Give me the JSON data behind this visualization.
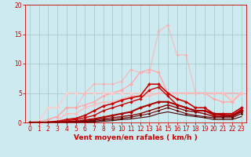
{
  "title": "",
  "xlabel": "Vent moyen/en rafales ( km/h )",
  "background_color": "#cdeaf0",
  "grid_color": "#aacccc",
  "xlim": [
    -0.5,
    23.5
  ],
  "ylim": [
    0,
    20
  ],
  "xticks": [
    0,
    1,
    2,
    3,
    4,
    5,
    6,
    7,
    8,
    9,
    10,
    11,
    12,
    13,
    14,
    15,
    16,
    17,
    18,
    19,
    20,
    21,
    22,
    23
  ],
  "yticks": [
    0,
    5,
    10,
    15,
    20
  ],
  "tick_color": "#cc0000",
  "label_color": "#cc0000",
  "lines": [
    {
      "x": [
        0,
        1,
        2,
        3,
        4,
        5,
        6,
        7,
        8,
        9,
        10,
        11,
        12,
        13,
        14,
        15,
        16,
        17,
        18,
        19,
        20,
        21,
        22,
        23
      ],
      "y": [
        0.0,
        0.1,
        0.5,
        1.0,
        2.5,
        2.5,
        3.0,
        3.5,
        4.5,
        5.0,
        5.5,
        6.5,
        8.5,
        9.0,
        8.5,
        5.0,
        5.0,
        5.0,
        5.0,
        5.0,
        4.0,
        3.5,
        3.5,
        5.0
      ],
      "color": "#ffaaaa",
      "lw": 1.0,
      "marker": "D",
      "ms": 2.0,
      "alpha": 1.0
    },
    {
      "x": [
        0,
        1,
        2,
        3,
        4,
        5,
        6,
        7,
        8,
        9,
        10,
        11,
        12,
        13,
        14,
        15,
        16,
        17,
        18,
        19,
        20,
        21,
        22,
        23
      ],
      "y": [
        0.0,
        0.3,
        2.5,
        2.5,
        5.0,
        5.0,
        5.0,
        5.0,
        5.0,
        5.0,
        5.0,
        5.0,
        5.0,
        5.0,
        5.0,
        5.0,
        5.0,
        5.0,
        5.0,
        5.0,
        5.0,
        5.0,
        4.0,
        5.0
      ],
      "color": "#ffcccc",
      "lw": 1.0,
      "marker": "D",
      "ms": 2.0,
      "alpha": 1.0
    },
    {
      "x": [
        0,
        1,
        2,
        3,
        4,
        5,
        6,
        7,
        8,
        9,
        10,
        11,
        12,
        13,
        14,
        15,
        16,
        17,
        18,
        19,
        20,
        21,
        22,
        23
      ],
      "y": [
        0.0,
        0.1,
        0.5,
        1.0,
        2.5,
        2.5,
        5.0,
        6.5,
        6.5,
        6.5,
        7.0,
        9.0,
        8.5,
        8.5,
        15.5,
        16.5,
        11.5,
        11.5,
        5.0,
        5.0,
        5.0,
        5.0,
        3.5,
        5.0
      ],
      "color": "#ffaaaa",
      "lw": 1.0,
      "marker": "D",
      "ms": 2.0,
      "alpha": 0.6
    },
    {
      "x": [
        0,
        1,
        2,
        3,
        4,
        5,
        6,
        7,
        8,
        9,
        10,
        11,
        12,
        13,
        14,
        15,
        16,
        17,
        18,
        19,
        20,
        21,
        22,
        23
      ],
      "y": [
        0.0,
        0.0,
        0.1,
        0.3,
        1.5,
        1.5,
        2.5,
        3.0,
        3.5,
        3.5,
        4.0,
        4.5,
        4.5,
        4.5,
        5.0,
        5.0,
        5.0,
        5.0,
        5.0,
        5.0,
        5.0,
        5.0,
        5.0,
        5.0
      ],
      "color": "#ffbbbb",
      "lw": 1.0,
      "marker": "D",
      "ms": 2.0,
      "alpha": 1.0
    },
    {
      "x": [
        0,
        1,
        2,
        3,
        4,
        5,
        6,
        7,
        8,
        9,
        10,
        11,
        12,
        13,
        14,
        15,
        16,
        17,
        18,
        19,
        20,
        21,
        22,
        23
      ],
      "y": [
        0.0,
        0.0,
        0.05,
        0.2,
        0.5,
        0.7,
        1.2,
        2.0,
        2.8,
        3.2,
        3.8,
        4.2,
        4.5,
        6.5,
        6.5,
        5.0,
        4.0,
        3.5,
        2.5,
        2.5,
        1.5,
        1.5,
        1.5,
        2.5
      ],
      "color": "#cc0000",
      "lw": 1.2,
      "marker": "D",
      "ms": 2.0,
      "alpha": 1.0
    },
    {
      "x": [
        0,
        1,
        2,
        3,
        4,
        5,
        6,
        7,
        8,
        9,
        10,
        11,
        12,
        13,
        14,
        15,
        16,
        17,
        18,
        19,
        20,
        21,
        22,
        23
      ],
      "y": [
        0.0,
        0.0,
        0.05,
        0.1,
        0.3,
        0.5,
        0.8,
        1.2,
        2.0,
        2.5,
        3.0,
        3.5,
        4.0,
        5.5,
        6.0,
        4.5,
        3.0,
        2.5,
        2.0,
        2.0,
        1.2,
        1.2,
        1.2,
        2.2
      ],
      "color": "#cc0000",
      "lw": 1.0,
      "marker": "D",
      "ms": 1.8,
      "alpha": 1.0
    },
    {
      "x": [
        0,
        1,
        2,
        3,
        4,
        5,
        6,
        7,
        8,
        9,
        10,
        11,
        12,
        13,
        14,
        15,
        16,
        17,
        18,
        19,
        20,
        21,
        22,
        23
      ],
      "y": [
        0.0,
        0.0,
        0.0,
        0.05,
        0.1,
        0.2,
        0.4,
        0.6,
        0.9,
        1.2,
        1.5,
        1.8,
        2.5,
        3.0,
        3.5,
        3.5,
        3.0,
        2.5,
        2.0,
        2.0,
        1.5,
        1.3,
        1.2,
        2.0
      ],
      "color": "#aa0000",
      "lw": 1.5,
      "marker": "D",
      "ms": 2.0,
      "alpha": 1.0
    },
    {
      "x": [
        0,
        1,
        2,
        3,
        4,
        5,
        6,
        7,
        8,
        9,
        10,
        11,
        12,
        13,
        14,
        15,
        16,
        17,
        18,
        19,
        20,
        21,
        22,
        23
      ],
      "y": [
        0.0,
        0.0,
        0.0,
        0.0,
        0.05,
        0.1,
        0.2,
        0.4,
        0.6,
        0.8,
        1.0,
        1.2,
        1.5,
        2.0,
        2.5,
        3.0,
        2.5,
        2.0,
        1.8,
        1.5,
        1.0,
        1.0,
        1.0,
        1.8
      ],
      "color": "#880000",
      "lw": 1.0,
      "marker": "D",
      "ms": 1.5,
      "alpha": 1.0
    },
    {
      "x": [
        0,
        1,
        2,
        3,
        4,
        5,
        6,
        7,
        8,
        9,
        10,
        11,
        12,
        13,
        14,
        15,
        16,
        17,
        18,
        19,
        20,
        21,
        22,
        23
      ],
      "y": [
        0.0,
        0.0,
        0.0,
        0.0,
        0.0,
        0.05,
        0.1,
        0.2,
        0.4,
        0.5,
        0.7,
        0.9,
        1.2,
        1.5,
        2.0,
        2.5,
        2.0,
        1.5,
        1.2,
        1.0,
        0.8,
        0.8,
        0.8,
        1.5
      ],
      "color": "#660000",
      "lw": 0.8,
      "marker": "D",
      "ms": 1.5,
      "alpha": 1.0
    },
    {
      "x": [
        0,
        1,
        2,
        3,
        4,
        5,
        6,
        7,
        8,
        9,
        10,
        11,
        12,
        13,
        14,
        15,
        16,
        17,
        18,
        19,
        20,
        21,
        22,
        23
      ],
      "y": [
        0.0,
        0.0,
        0.0,
        0.0,
        0.0,
        0.0,
        0.05,
        0.1,
        0.2,
        0.3,
        0.5,
        0.6,
        0.8,
        1.0,
        1.5,
        1.8,
        1.5,
        1.2,
        1.0,
        0.8,
        0.5,
        0.5,
        0.5,
        1.0
      ],
      "color": "#440000",
      "lw": 0.8,
      "marker": null,
      "ms": 0,
      "alpha": 1.0
    }
  ],
  "wind_dirs": [
    "↙",
    "↙",
    "←",
    "←",
    "←",
    "←",
    "←",
    "↖",
    "↖",
    "←",
    "↖",
    "↙",
    "↙",
    "↓",
    "→",
    "↗",
    "↘",
    "↘",
    "↓",
    "↓",
    "↓",
    "↓",
    "↓",
    "←"
  ],
  "axis_label_fontsize": 6.5,
  "tick_fontsize": 5.5
}
